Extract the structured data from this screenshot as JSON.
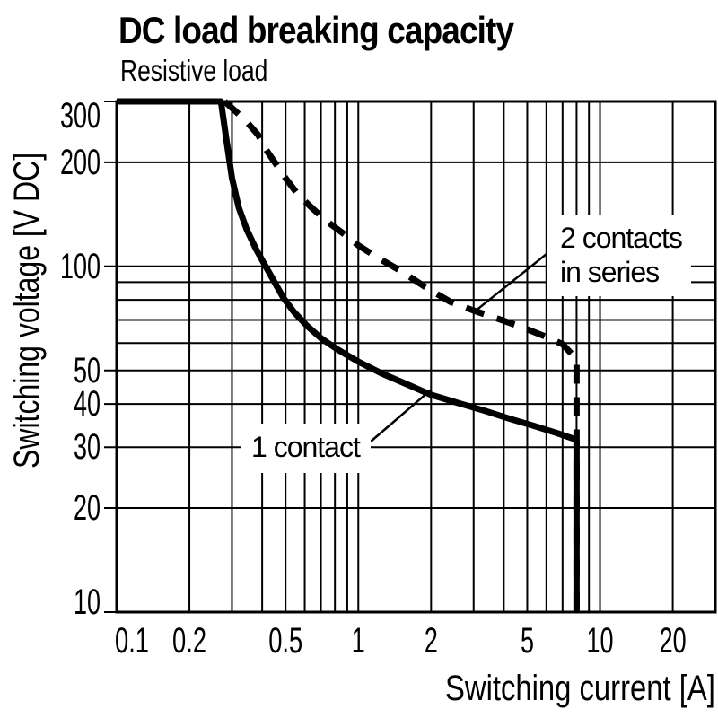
{
  "chart_data": {
    "type": "line",
    "title": "DC load breaking capacity",
    "subtitle": "Resistive load",
    "xlabel": "Switching current [A]",
    "ylabel": "Switching voltage [V DC]",
    "x_scale": "log",
    "y_scale": "log",
    "xlim": [
      0.1,
      30
    ],
    "ylim": [
      10,
      300
    ],
    "x_tick_values": [
      0.1,
      0.2,
      0.5,
      1,
      2,
      5,
      10,
      20
    ],
    "x_tick_labels": [
      "0.1",
      "0.2",
      "0.5",
      "1",
      "2",
      "5",
      "10",
      "20"
    ],
    "y_tick_values": [
      300,
      200,
      100,
      50,
      40,
      30,
      20,
      10
    ],
    "y_tick_labels": [
      "300",
      "200",
      "100",
      "50",
      "40",
      "30",
      "20",
      "10"
    ],
    "grid": "full log minor gridlines on both axes",
    "legend_position": "inline annotations",
    "line_color": "#000000",
    "background_color": "#ffffff",
    "series": [
      {
        "name": "1 contact",
        "style": "solid",
        "points": [
          [
            0.1,
            300
          ],
          [
            0.27,
            300
          ],
          [
            0.285,
            230
          ],
          [
            0.3,
            180
          ],
          [
            0.32,
            148
          ],
          [
            0.345,
            128
          ],
          [
            0.375,
            113
          ],
          [
            0.41,
            101
          ],
          [
            0.45,
            90
          ],
          [
            0.49,
            81
          ],
          [
            0.54,
            74
          ],
          [
            0.61,
            67.5
          ],
          [
            0.7,
            62
          ],
          [
            0.82,
            57.5
          ],
          [
            1.0,
            53
          ],
          [
            1.25,
            49
          ],
          [
            1.6,
            45.5
          ],
          [
            2.0,
            42.5
          ],
          [
            2.6,
            40.2
          ],
          [
            3.3,
            38.3
          ],
          [
            4.2,
            36.3
          ],
          [
            5.3,
            34.6
          ],
          [
            6.6,
            33
          ],
          [
            8.0,
            31.5
          ],
          [
            8.0,
            10
          ]
        ]
      },
      {
        "name": "2 contacts in series",
        "style": "dashed",
        "points": [
          [
            0.28,
            300
          ],
          [
            0.34,
            265
          ],
          [
            0.385,
            240
          ],
          [
            0.42,
            215
          ],
          [
            0.46,
            196
          ],
          [
            0.5,
            180
          ],
          [
            0.56,
            162
          ],
          [
            0.64,
            148
          ],
          [
            0.74,
            135
          ],
          [
            0.86,
            125
          ],
          [
            1.0,
            115
          ],
          [
            1.2,
            106
          ],
          [
            1.5,
            97
          ],
          [
            1.9,
            87
          ],
          [
            2.4,
            79
          ],
          [
            3.0,
            74.5
          ],
          [
            3.8,
            70.5
          ],
          [
            4.8,
            66.5
          ],
          [
            6.0,
            62.5
          ],
          [
            7.0,
            59.5
          ],
          [
            8.0,
            54
          ],
          [
            8.0,
            10
          ]
        ]
      }
    ],
    "annotations": [
      {
        "text": "1 contact",
        "series": "1 contact",
        "pointer_to_xy": [
          2.0,
          44
        ]
      },
      {
        "text_lines": [
          "2 contacts",
          "in series"
        ],
        "series": "2 contacts in series",
        "pointer_to_xy": [
          3.1,
          75
        ]
      }
    ]
  }
}
